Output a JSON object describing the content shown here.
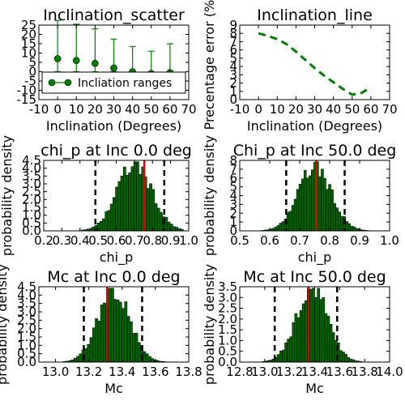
{
  "chart_data": [
    {
      "type": "scatter",
      "title": "Inclination_scatter",
      "xlabel": "Inclination (Degrees)",
      "ylabel": "",
      "xlim": [
        -10,
        70
      ],
      "ylim": [
        -15,
        25
      ],
      "xticks": [
        -10,
        0,
        10,
        20,
        30,
        40,
        50,
        60,
        70
      ],
      "yticks": [
        -15,
        -10,
        -5,
        0,
        5,
        10,
        15,
        20,
        25
      ],
      "legend": {
        "label": "Incliation ranges",
        "position": "lower-center"
      },
      "series": [
        {
          "name": "Incliation ranges",
          "color": "#008000",
          "x": [
            0,
            10,
            20,
            30,
            40,
            50,
            60
          ],
          "y": [
            7,
            6,
            4.5,
            2,
            0,
            -1,
            -0.5
          ],
          "yerr_low": [
            7,
            6,
            4.5,
            2,
            0,
            -1,
            -0.5
          ],
          "yerr_high": [
            20.5,
            19.5,
            18.5,
            15.5,
            13.5,
            12,
            15.5
          ]
        }
      ]
    },
    {
      "type": "line",
      "title": "Inclination_line",
      "xlabel": "Inclination (Degrees)",
      "ylabel": "Precentage error (%)",
      "xlim": [
        -10,
        70
      ],
      "ylim": [
        0,
        9
      ],
      "xticks": [
        -10,
        0,
        10,
        20,
        30,
        40,
        50,
        60,
        70
      ],
      "yticks": [
        0,
        1,
        2,
        3,
        4,
        5,
        6,
        7,
        8,
        9
      ],
      "series": [
        {
          "color": "#008000",
          "style": "dashed",
          "x": [
            0,
            5,
            10,
            15,
            20,
            25,
            30,
            35,
            40,
            45,
            50,
            55,
            60
          ],
          "y": [
            8.0,
            7.7,
            7.3,
            6.7,
            5.8,
            4.8,
            3.8,
            2.9,
            2.1,
            1.3,
            0.6,
            0.8,
            1.5
          ]
        }
      ]
    },
    {
      "type": "bar",
      "title": "chi_p at Inc 0.0 deg",
      "xlabel": "chi_p",
      "ylabel": "probability density",
      "xlim": [
        0.2,
        1.0
      ],
      "ylim": [
        0,
        4.5
      ],
      "xticks": [
        "0.2",
        "0.3",
        "0.4",
        "0.5",
        "0.6",
        "0.7",
        "0.8",
        "0.9",
        "1.0"
      ],
      "yticks": [
        "0.0",
        "0.5",
        "1.0",
        "1.5",
        "2.0",
        "2.5",
        "3.0",
        "3.5",
        "4.0",
        "4.5"
      ],
      "hist": {
        "mean": 0.7,
        "sd": 0.095,
        "peak": 4.25,
        "range": [
          0.25,
          0.97
        ],
        "bins": 50,
        "color": "#006400"
      },
      "vlines": {
        "solid": [
          0.755
        ],
        "dashed": [
          0.485,
          0.865
        ]
      }
    },
    {
      "type": "bar",
      "title": "Chi_p at Inc 50.0 deg",
      "xlabel": "chi_p",
      "ylabel": "probability density",
      "xlim": [
        0.5,
        1.0
      ],
      "ylim": [
        0,
        8
      ],
      "xticks": [
        "0.5",
        "0.6",
        "0.7",
        "0.8",
        "0.9",
        "1.0"
      ],
      "yticks": [
        "0",
        "1",
        "2",
        "3",
        "4",
        "5",
        "6",
        "7",
        "8"
      ],
      "hist": {
        "mean": 0.75,
        "sd": 0.055,
        "peak": 7.2,
        "range": [
          0.55,
          0.96
        ],
        "bins": 50,
        "color": "#006400"
      },
      "vlines": {
        "solid": [
          0.755
        ],
        "dashed": [
          0.655,
          0.85
        ]
      }
    },
    {
      "type": "bar",
      "title": "Mc at Inc 0.0 deg",
      "xlabel": "Mc",
      "ylabel": "probability density",
      "xlim": [
        12.9,
        13.8
      ],
      "ylim": [
        0,
        4.5
      ],
      "xticks": [
        "13.0",
        "13.2",
        "13.4",
        "13.6",
        "13.8"
      ],
      "yticks": [
        "0.0",
        "0.5",
        "1.0",
        "1.5",
        "2.0",
        "2.5",
        "3.0",
        "3.5",
        "4.0",
        "4.5"
      ],
      "hist": {
        "mean": 13.35,
        "sd": 0.095,
        "peak": 4.2,
        "range": [
          12.95,
          13.75
        ],
        "bins": 50,
        "color": "#006400"
      },
      "vlines": {
        "solid": [
          13.31
        ],
        "dashed": [
          13.17,
          13.52
        ]
      }
    },
    {
      "type": "bar",
      "title": "Mc at Inc 50.0 deg",
      "xlabel": "Mc",
      "ylabel": "probability density",
      "xlim": [
        12.8,
        14.0
      ],
      "ylim": [
        0,
        3.5
      ],
      "xticks": [
        "12.8",
        "13.0",
        "13.2",
        "13.4",
        "13.6",
        "13.8",
        "14.0"
      ],
      "yticks": [
        "0.0",
        "0.5",
        "1.0",
        "1.5",
        "2.0",
        "2.5",
        "3.0",
        "3.5"
      ],
      "hist": {
        "mean": 13.38,
        "sd": 0.125,
        "peak": 3.4,
        "range": [
          12.9,
          13.9
        ],
        "bins": 50,
        "color": "#006400"
      },
      "vlines": {
        "solid": [
          13.35
        ],
        "dashed": [
          13.08,
          13.58
        ]
      }
    }
  ]
}
